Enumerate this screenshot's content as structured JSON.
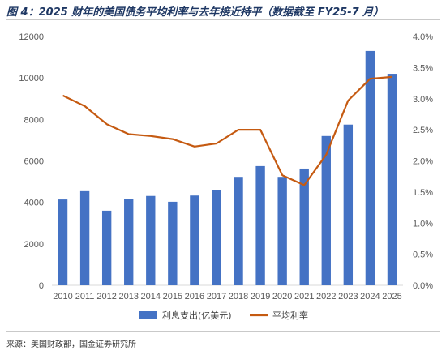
{
  "figure_title": "图 4：2025 财年的美国债务平均利率与去年接近持平（数据截至 FY25-7 月）",
  "source_note": "来源：美国财政部，国金证券研究所",
  "chart_data": {
    "type": "bar",
    "categories": [
      "2010",
      "2011",
      "2012",
      "2013",
      "2014",
      "2015",
      "2016",
      "2017",
      "2018",
      "2019",
      "2020",
      "2021",
      "2022",
      "2023",
      "2024",
      "2025"
    ],
    "series": [
      {
        "name": "利息支出(亿美元)",
        "type": "bar",
        "axis": "left",
        "color": "#4472c4",
        "values": [
          4140,
          4540,
          3600,
          4160,
          4310,
          4030,
          4330,
          4580,
          5230,
          5750,
          5230,
          5630,
          7200,
          7750,
          11300,
          10200
        ]
      },
      {
        "name": "平均利率",
        "type": "line",
        "axis": "right",
        "color": "#c55a11",
        "values": [
          3.05,
          2.88,
          2.59,
          2.43,
          2.4,
          2.35,
          2.23,
          2.28,
          2.5,
          2.5,
          1.77,
          1.61,
          2.1,
          2.97,
          3.32,
          3.35
        ]
      }
    ],
    "y_left": {
      "ticks": [
        0,
        2000,
        4000,
        6000,
        8000,
        10000,
        12000
      ],
      "range": [
        0,
        12000
      ]
    },
    "y_right": {
      "ticks": [
        "0.0%",
        "0.5%",
        "1.0%",
        "1.5%",
        "2.0%",
        "2.5%",
        "3.0%",
        "3.5%",
        "4.0%"
      ],
      "range": [
        0,
        4.0
      ]
    },
    "grid": false,
    "legend_position": "bottom"
  }
}
